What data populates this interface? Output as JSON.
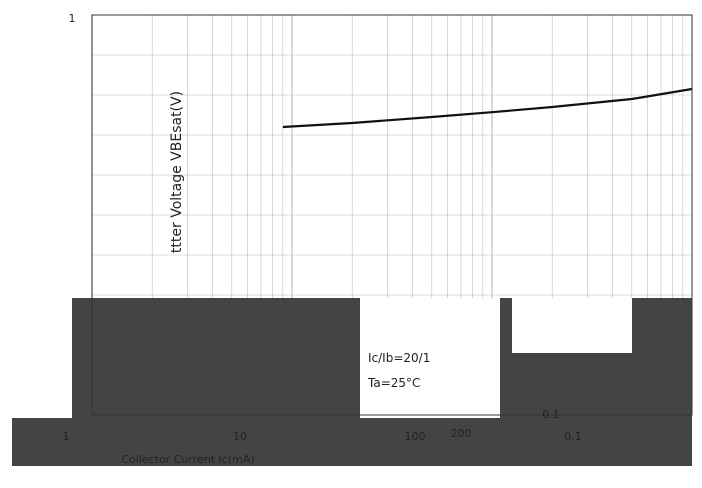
{
  "chart_data": {
    "type": "line",
    "ylabel": "ttter Voltage VBEsat(V)",
    "y_top_tick": "1",
    "x_tick_labels": [
      "1",
      "10",
      "100",
      "200",
      "0.1",
      "0.1"
    ],
    "xlabel": "Collector Current  Ic(mA)",
    "annotations": [
      "Ic/Ib=20/1",
      "Ta=25°C"
    ],
    "x_scale": "log",
    "grid": true,
    "series": [
      {
        "x": [
          9,
          20,
          50,
          100,
          200,
          500,
          1000
        ],
        "y": [
          0.72,
          0.73,
          0.745,
          0.757,
          0.77,
          0.79,
          0.815
        ]
      }
    ]
  },
  "colors": {
    "line": "#111111",
    "grid": "#bfbfbf",
    "dark_band": "#444444",
    "axis": "#333333"
  }
}
